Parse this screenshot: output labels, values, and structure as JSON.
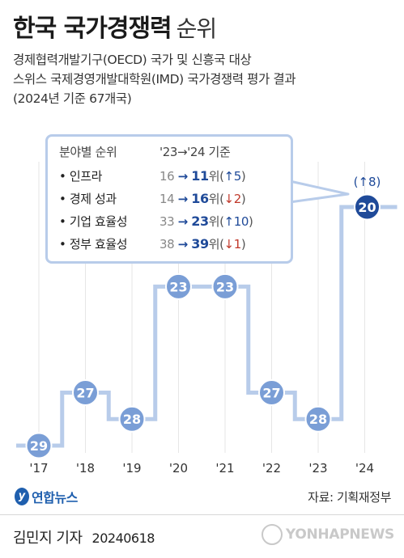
{
  "title": {
    "main": "한국 국가경쟁력",
    "sub": "순위"
  },
  "subtitle": [
    "경제협력개발기구(OECD) 국가 및 신흥국 대상",
    "스위스 국제경영개발대학원(IMD) 국가경쟁력 평가 결과",
    "(2024년 기준 67개국)"
  ],
  "callout": {
    "header_left": "분야별 순위",
    "header_right": "'23→'24 기준",
    "rows": [
      {
        "name": "• 인프라",
        "prev": "16",
        "arrow": "→",
        "curr": "11",
        "unit": "위",
        "change_arrow": "↑",
        "change": "5",
        "dir": "up"
      },
      {
        "name": "• 경제 성과",
        "prev": "14",
        "arrow": "→",
        "curr": "16",
        "unit": "위",
        "change_arrow": "↓",
        "change": "2",
        "dir": "down"
      },
      {
        "name": "• 기업 효율성",
        "prev": "33",
        "arrow": "→",
        "curr": "23",
        "unit": "위",
        "change_arrow": "↑",
        "change": "10",
        "dir": "up"
      },
      {
        "name": "• 정부 효율성",
        "prev": "38",
        "arrow": "→",
        "curr": "39",
        "unit": "위",
        "change_arrow": "↓",
        "change": "1",
        "dir": "down"
      }
    ]
  },
  "chart_data": {
    "type": "line",
    "x": [
      "'17",
      "'18",
      "'19",
      "'20",
      "'21",
      "'22",
      "'23",
      "'24"
    ],
    "series": [
      {
        "values": [
          29,
          27,
          28,
          23,
          23,
          27,
          28,
          20
        ]
      }
    ],
    "annotation": "(↑8)",
    "style": "step",
    "y_inverted": true,
    "colors": {
      "line": "#b8ccea",
      "marker": "#7a9ed6",
      "marker_last": "#1f4a99",
      "marker_text": "#ffffff",
      "grid": "#e6e6e6",
      "tick": "#333333"
    }
  },
  "logo": {
    "mark": "y",
    "text": "연합뉴스"
  },
  "source": "자료: 기획재정부",
  "reporter": {
    "name": "김민지 기자",
    "date": "20240618"
  },
  "watermark": "YONHAPNEWS"
}
